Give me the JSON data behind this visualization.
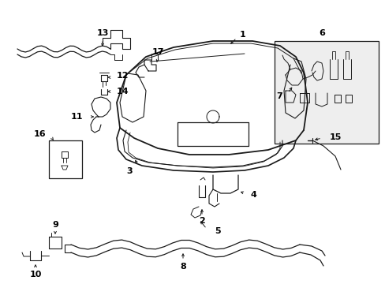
{
  "background_color": "#ffffff",
  "line_color": "#1a1a1a",
  "label_color": "#000000",
  "label_fontsize": 7.5,
  "fig_w": 4.89,
  "fig_h": 3.6,
  "dpi": 100
}
